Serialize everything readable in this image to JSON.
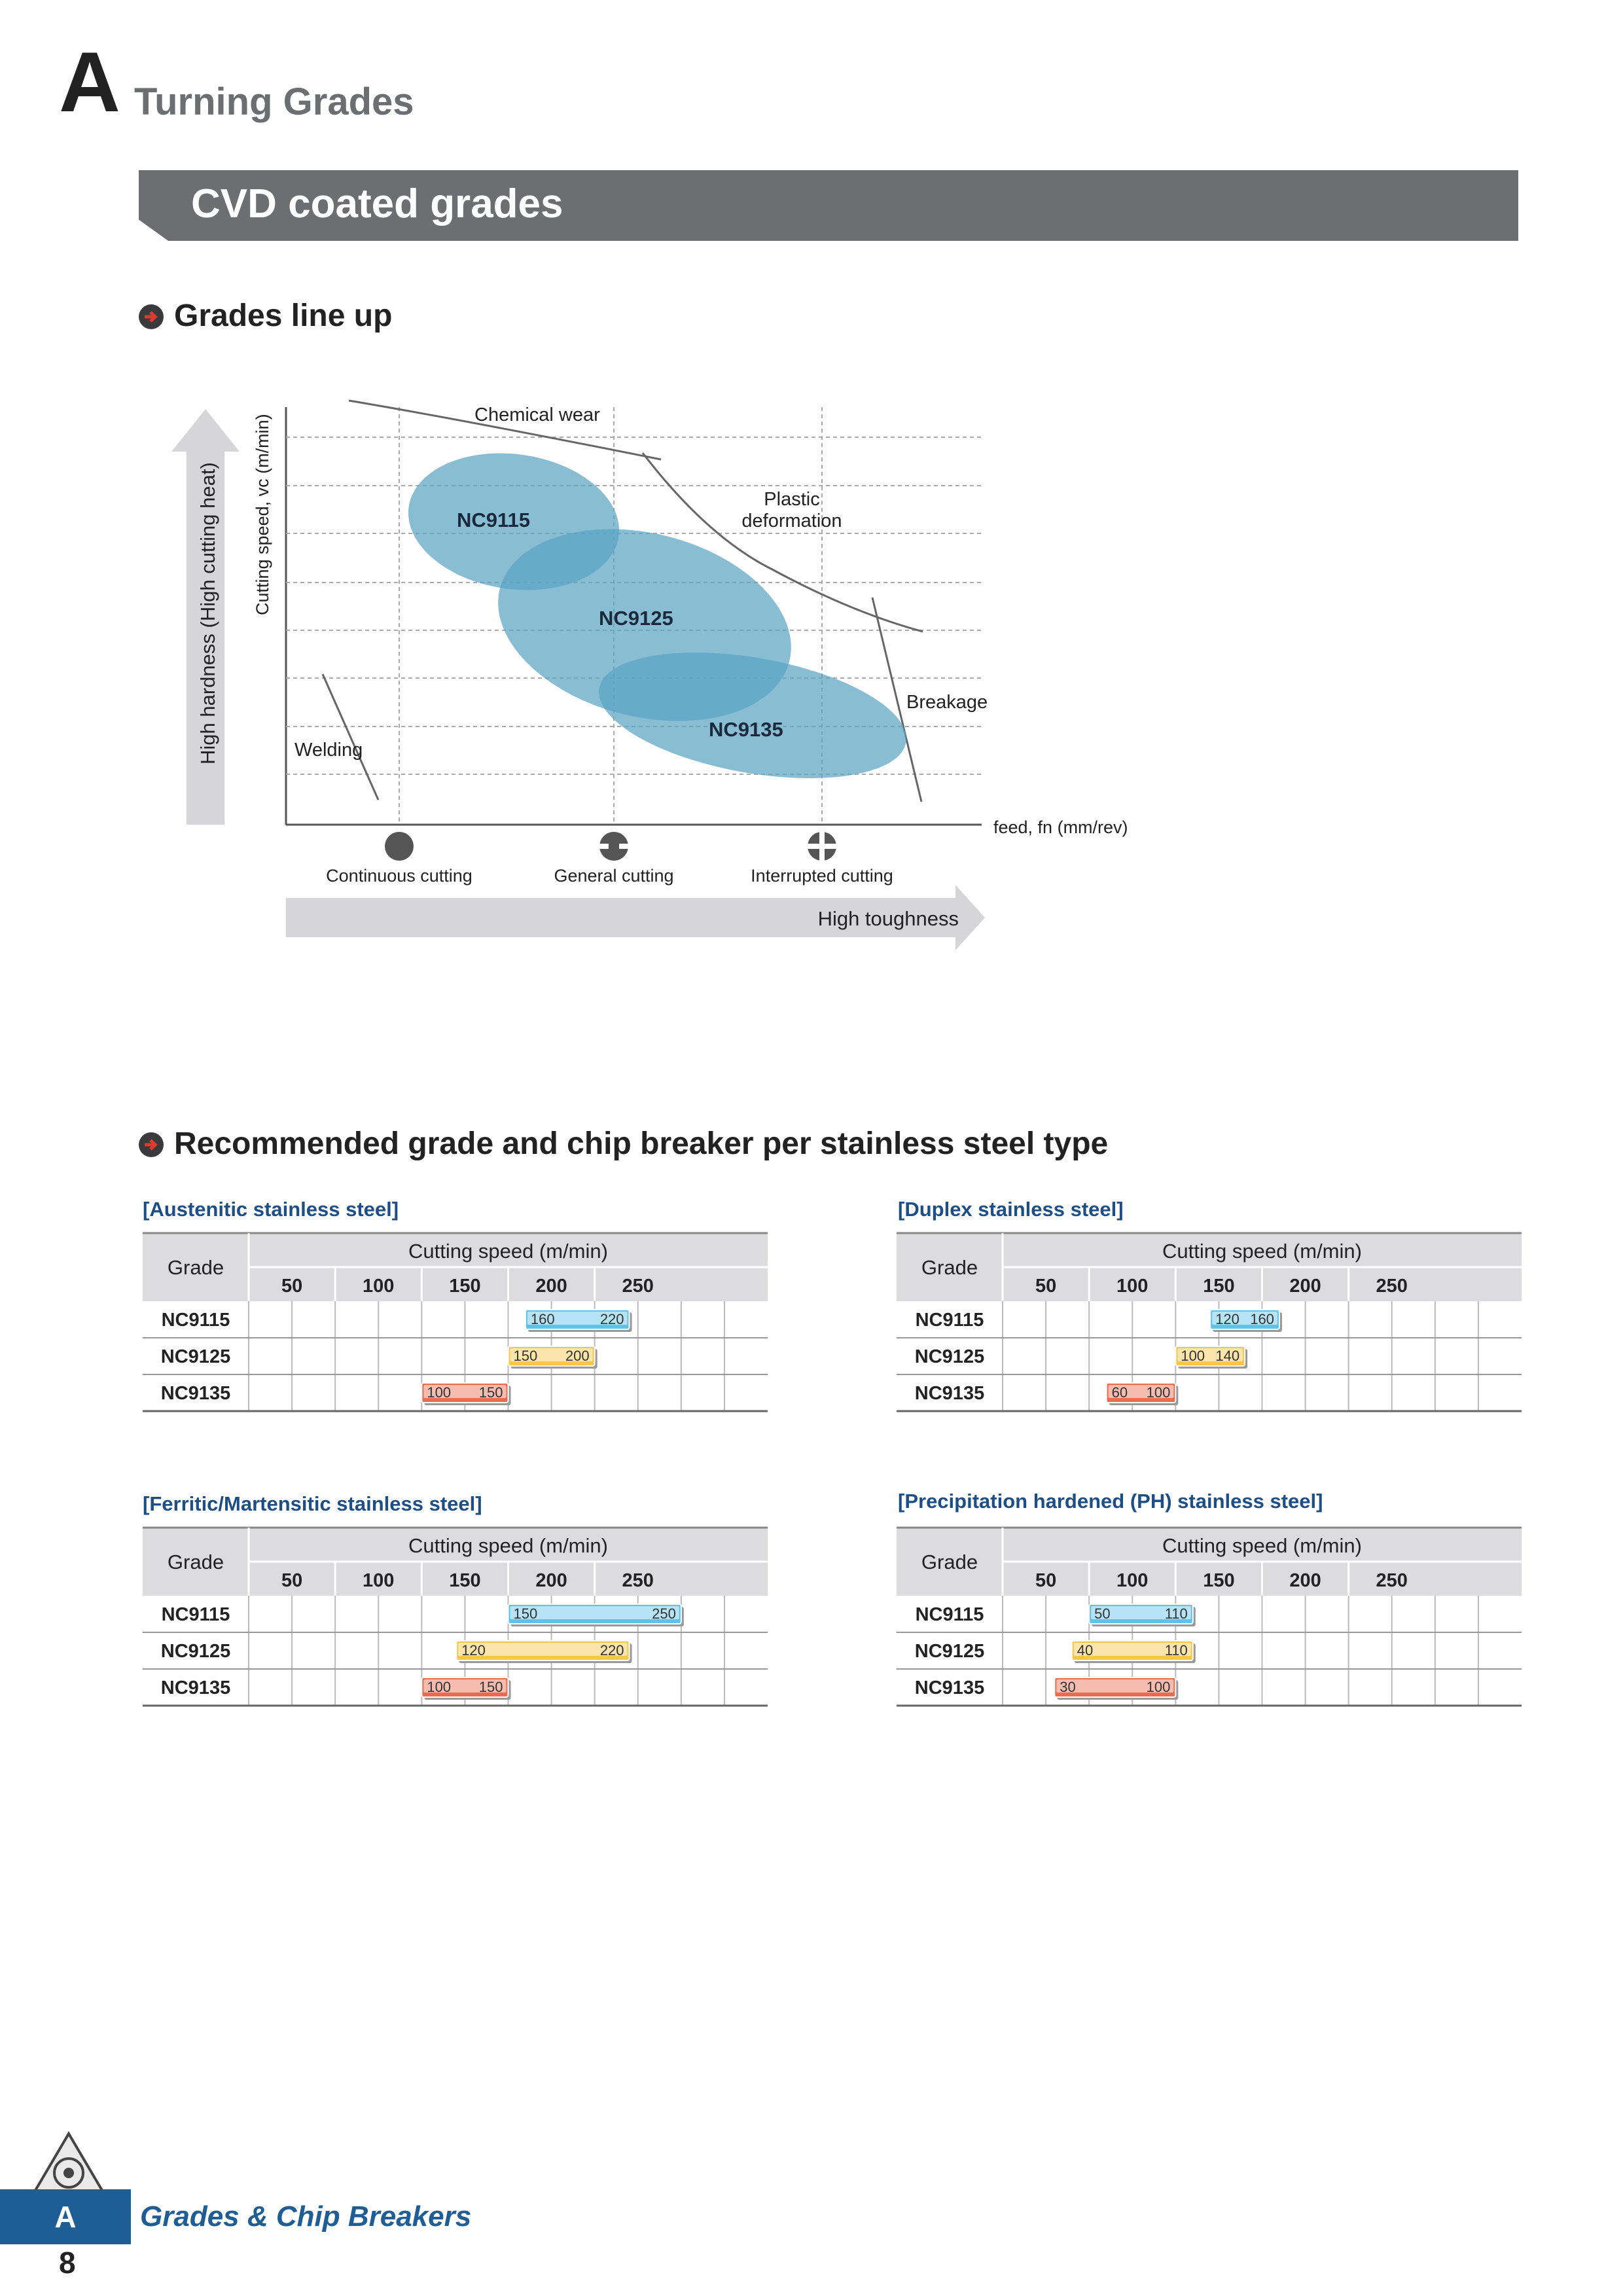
{
  "header": {
    "letter": "A",
    "title": "Turning Grades"
  },
  "banner": {
    "title": "CVD coated grades"
  },
  "lineup": {
    "heading": "Grades line up",
    "y_label": "Cutting speed, vc (m/min)",
    "y_arrow_label": "High hardness (High cutting heat)",
    "x_label": "feed, fn (mm/rev)",
    "x_arrow_label": "High toughness",
    "zones": {
      "chemical": "Chemical wear",
      "plastic1": "Plastic",
      "plastic2": "deformation",
      "breakage": "Breakage",
      "welding": "Welding"
    },
    "grades": [
      "NC9115",
      "NC9125",
      "NC9135"
    ],
    "cutting_types": [
      "Continuous cutting",
      "General cutting",
      "Interrupted cutting"
    ],
    "colors": {
      "ellipse": "#5aa3c4",
      "arrow": "#d6d6d8"
    }
  },
  "recommended": {
    "heading": "Recommended grade and chip breaker per stainless steel type",
    "header_grade": "Grade",
    "header_speed": "Cutting speed (m/min)",
    "ticks": [
      "50",
      "100",
      "150",
      "200",
      "250"
    ],
    "colors": {
      "NC9115": "#5ec3ea",
      "NC9125": "#f7c64a",
      "NC9135": "#ea6b50"
    },
    "tables": [
      {
        "title": "[Austenitic stainless steel]",
        "rows": [
          {
            "grade": "NC9115",
            "min": "160",
            "max": "220"
          },
          {
            "grade": "NC9125",
            "min": "150",
            "max": "200"
          },
          {
            "grade": "NC9135",
            "min": "100",
            "max": "150"
          }
        ]
      },
      {
        "title": "[Duplex stainless steel]",
        "rows": [
          {
            "grade": "NC9115",
            "min": "120",
            "max": "160"
          },
          {
            "grade": "NC9125",
            "min": "100",
            "max": "140"
          },
          {
            "grade": "NC9135",
            "min": "60",
            "max": "100"
          }
        ]
      },
      {
        "title": "[Ferritic/Martensitic stainless steel]",
        "rows": [
          {
            "grade": "NC9115",
            "min": "150",
            "max": "250"
          },
          {
            "grade": "NC9125",
            "min": "120",
            "max": "220"
          },
          {
            "grade": "NC9135",
            "min": "100",
            "max": "150"
          }
        ]
      },
      {
        "title": "[Precipitation hardened (PH) stainless steel]",
        "rows": [
          {
            "grade": "NC9115",
            "min": "50",
            "max": "110"
          },
          {
            "grade": "NC9125",
            "min": "40",
            "max": "110"
          },
          {
            "grade": "NC9135",
            "min": "30",
            "max": "100"
          }
        ]
      }
    ]
  },
  "footer": {
    "letter": "A",
    "page": "8",
    "title": "Grades & Chip Breakers"
  }
}
